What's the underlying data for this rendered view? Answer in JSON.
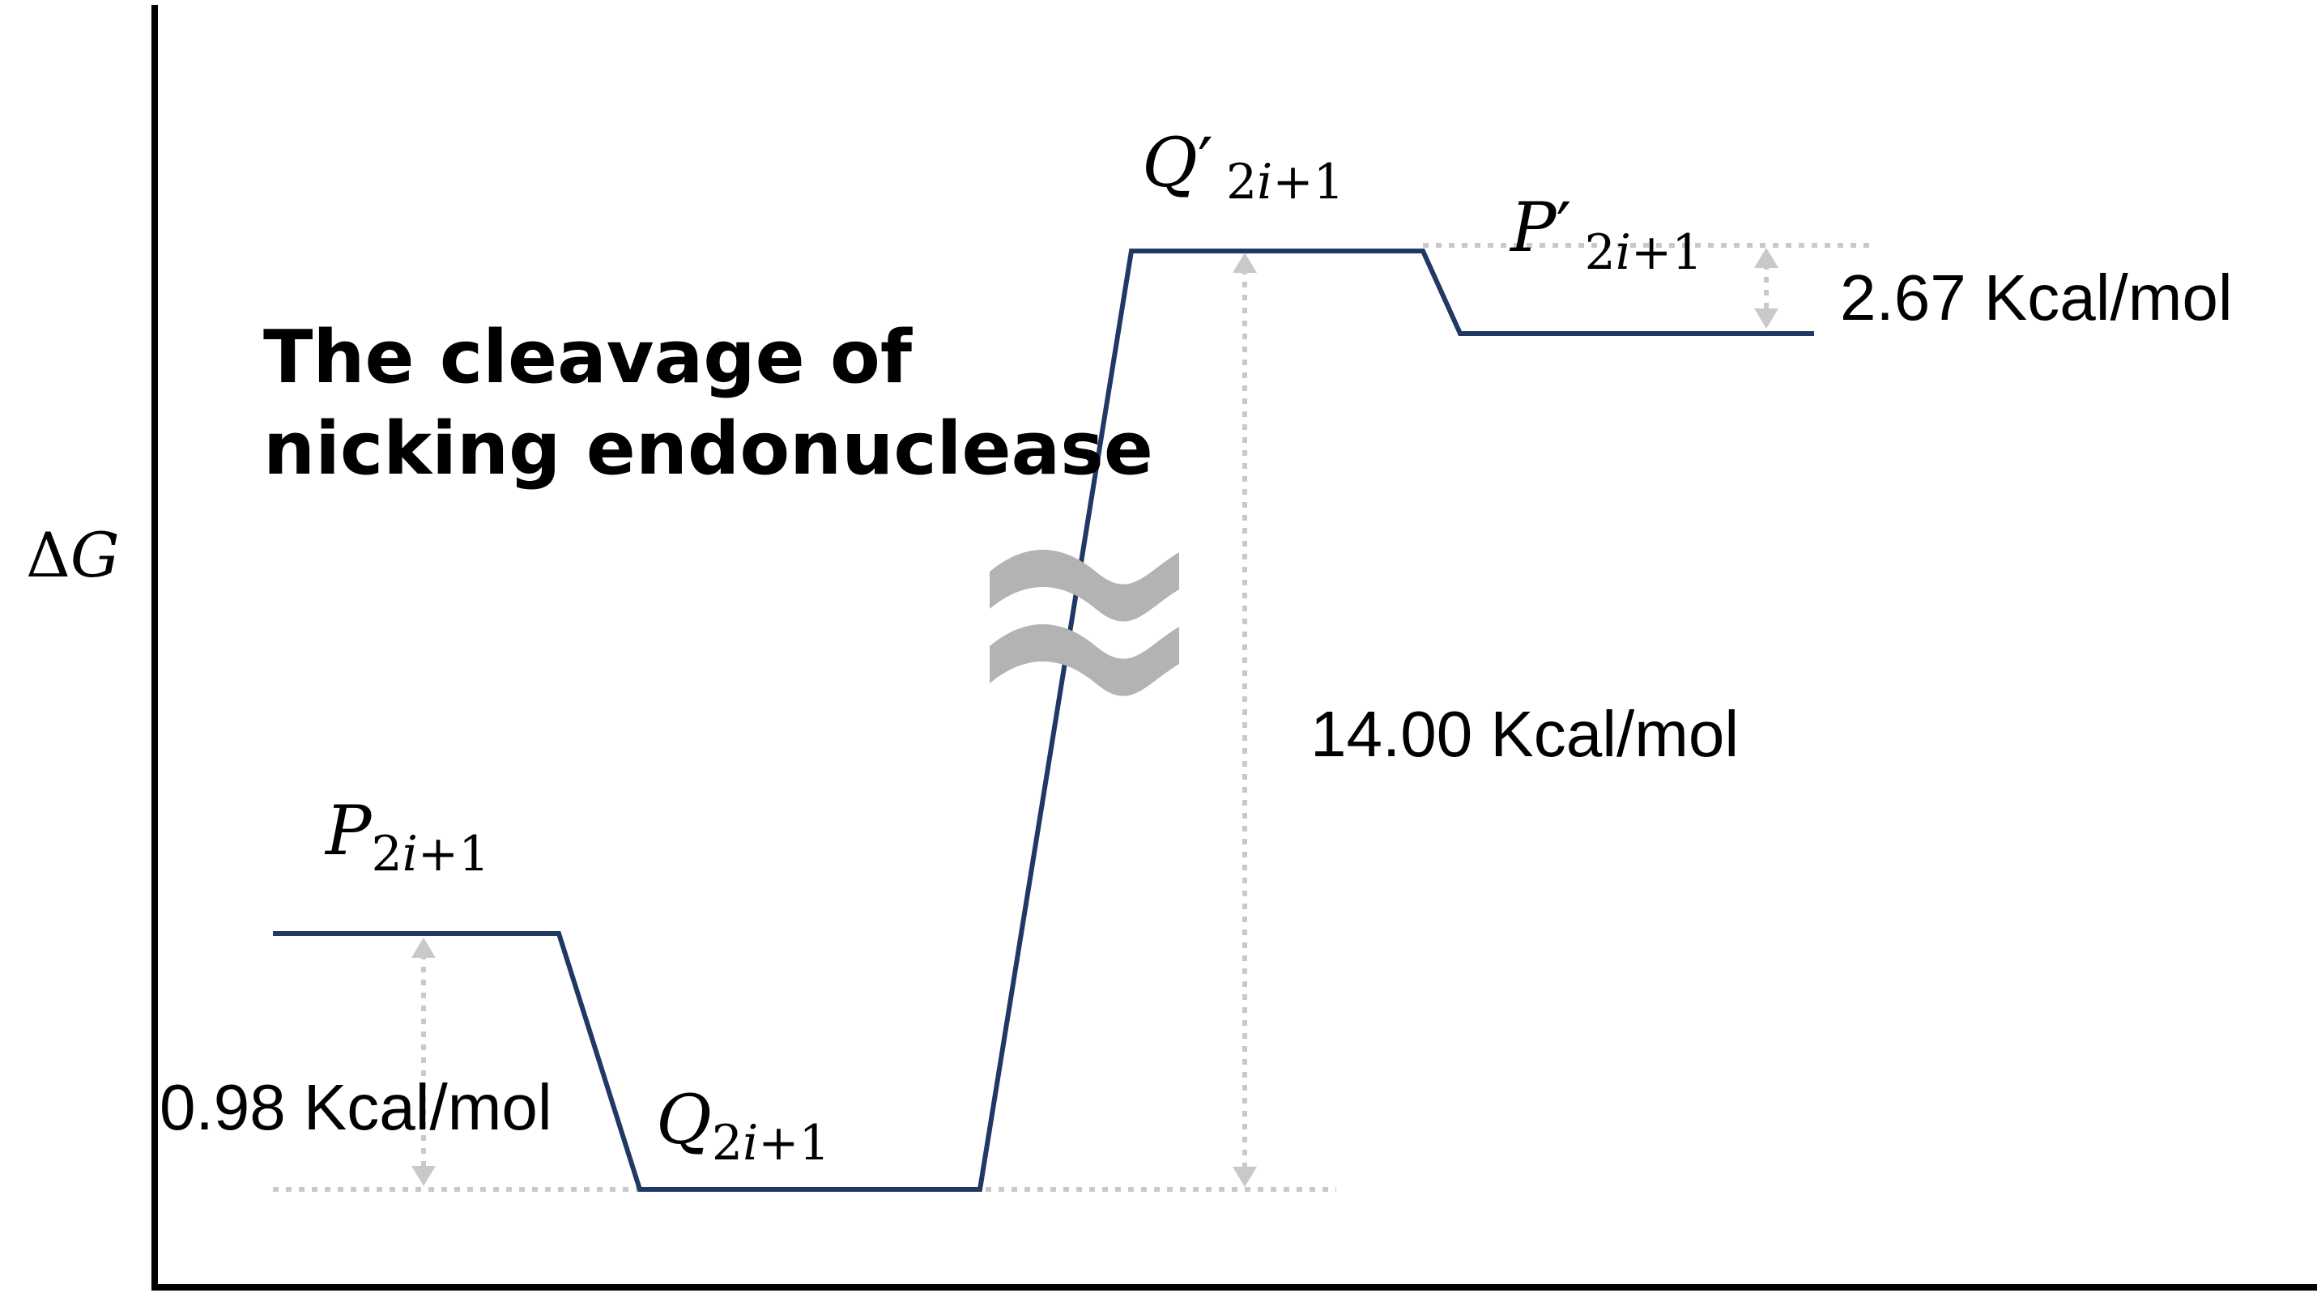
{
  "axis": {
    "y_label_symbol": "Δ",
    "y_label_var": "G"
  },
  "title": {
    "line1": "The cleavage of",
    "line2": "nicking endonuclease"
  },
  "states": {
    "p": {
      "base": "P",
      "prime": "",
      "sub_a": "2",
      "sub_i": "i",
      "sub_b": "+1"
    },
    "q": {
      "base": "Q",
      "prime": "",
      "sub_a": "2",
      "sub_i": "i",
      "sub_b": "+1"
    },
    "q_prime": {
      "base": "Q",
      "prime": "′",
      "sub_a": "2",
      "sub_i": "i",
      "sub_b": "+1"
    },
    "p_prime": {
      "base": "P",
      "prime": "′",
      "sub_a": "2",
      "sub_i": "i",
      "sub_b": "+1"
    }
  },
  "energy_differences": {
    "p_to_q": "0.98 Kcal/mol",
    "q_to_q_prime": "14.00 Kcal/mol",
    "q_prime_to_p_prime": "2.67 Kcal/mol"
  },
  "colors": {
    "level_line": "#1f3864",
    "guide": "#c9c9c9",
    "axis_break": "#b3b3b3"
  }
}
